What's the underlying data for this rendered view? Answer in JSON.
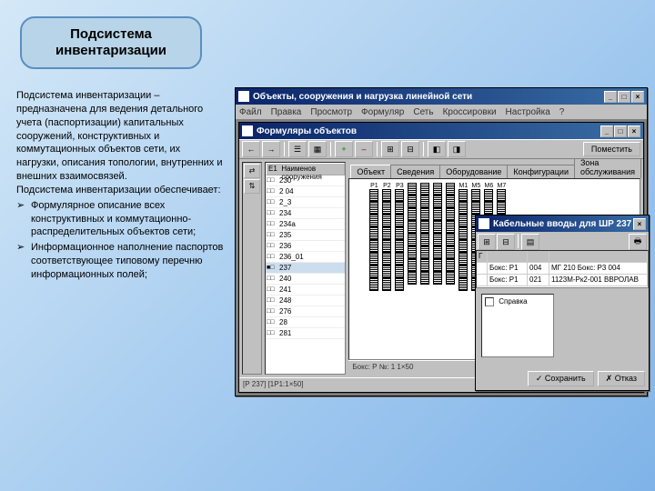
{
  "title_box": "Подсистема инвентаризации",
  "description": {
    "p1": "Подсистема инвентаризации – предназначена для ведения детального учета (паспортизации) капитальных сооружений, конструктивных и коммутационных объектов сети, их нагрузки, описания топологии, внутренних и внешних взаимосвязей.",
    "p2": "Подсистема инвентаризации обеспечивает:",
    "bullets": [
      "Формулярное описание всех конструктивных и коммутационно-распределительных объектов сети;",
      "Информационное наполнение паспортов соответствующее типовому перечню информационных полей;"
    ]
  },
  "main_window": {
    "title": "Объекты, сооружения и нагрузка линейной сети",
    "menu": [
      "Файл",
      "Правка",
      "Просмотр",
      "Формуляр",
      "Сеть",
      "Кроссировки",
      "Настройка",
      "?"
    ],
    "child_title": "Формуляры объектов",
    "toolbar_right": "Поместить",
    "list_header_col0": "Е1",
    "list_header_col1": "Наименов сооружения",
    "list_rows": [
      {
        "ic": "□□",
        "name": "230"
      },
      {
        "ic": "□□",
        "name": "2 04"
      },
      {
        "ic": "□□",
        "name": "2_3"
      },
      {
        "ic": "□□",
        "name": "234"
      },
      {
        "ic": "□□",
        "name": "234а"
      },
      {
        "ic": "□□",
        "name": "235"
      },
      {
        "ic": "□□",
        "name": "236"
      },
      {
        "ic": "□□",
        "name": "236_01"
      },
      {
        "ic": "■□",
        "name": "237"
      },
      {
        "ic": "□□",
        "name": "240"
      },
      {
        "ic": "□□",
        "name": "241"
      },
      {
        "ic": "□□",
        "name": "248"
      },
      {
        "ic": "□□",
        "name": "276"
      },
      {
        "ic": "□□",
        "name": "28"
      },
      {
        "ic": "□□",
        "name": "281"
      }
    ],
    "tabs": [
      "Объект",
      "Сведения",
      "Оборудование",
      "Конфигурации",
      "Зона обслуживания"
    ],
    "diagram_cols": [
      "P1",
      "P2",
      "P3",
      "",
      "",
      "",
      "",
      "М1",
      "М5",
      "М6",
      "М7"
    ],
    "statusbar": "[Р 237]  [1Р1:1×50]",
    "statusbar2": "Бокс: Р №: 1 1×50"
  },
  "popup_window": {
    "title": "Кабельные вводы для ШР 237",
    "grid": {
      "headers": [
        "Г",
        "",
        "",
        "",
        ""
      ],
      "rows": [
        [
          "",
          "Бокс: Р1",
          "004",
          "МГ 210  Бокс: Р3 004",
          ""
        ],
        [
          "",
          "Бокс: Р1",
          "021",
          "1123М-Рк2-001 ВВРОЛАВ",
          ""
        ]
      ]
    },
    "legend": "Справка",
    "btn_ok": "✓ Сохранить",
    "btn_cancel": "✗ Отказ"
  }
}
